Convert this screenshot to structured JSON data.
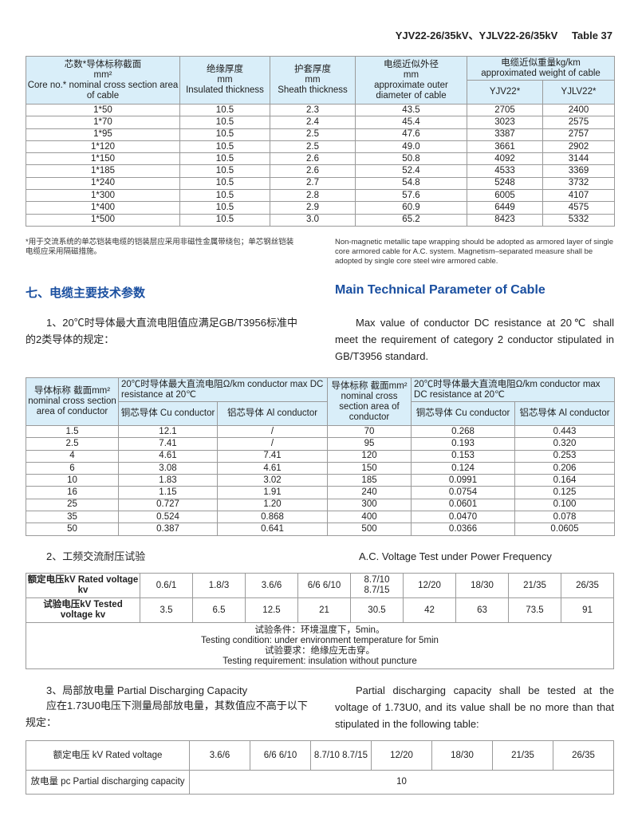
{
  "header": {
    "title": "YJV22-26/35kV、YJLV22-26/35kV",
    "table_label": "Table 37"
  },
  "table1": {
    "headers": {
      "core": [
        "芯数*导体标称截面",
        "mm²",
        "Core no.* nominal cross section area of cable"
      ],
      "insul": [
        "绝缘厚度",
        "mm",
        "Insulated thickness"
      ],
      "sheath": [
        "护套厚度",
        "mm",
        "Sheath thickness"
      ],
      "diam": [
        "电缆近似外径",
        "mm",
        "approximate outer diameter of cable"
      ],
      "weight": [
        "电缆近似重量kg/km",
        "approximated weight of cable"
      ],
      "yjv": "YJV22*",
      "yjlv": "YJLV22*"
    },
    "rows": [
      [
        "1*50",
        "10.5",
        "2.3",
        "43.5",
        "2705",
        "2400"
      ],
      [
        "1*70",
        "10.5",
        "2.4",
        "45.4",
        "3023",
        "2575"
      ],
      [
        "1*95",
        "10.5",
        "2.5",
        "47.6",
        "3387",
        "2757"
      ],
      [
        "1*120",
        "10.5",
        "2.5",
        "49.0",
        "3661",
        "2902"
      ],
      [
        "1*150",
        "10.5",
        "2.6",
        "50.8",
        "4092",
        "3144"
      ],
      [
        "1*185",
        "10.5",
        "2.6",
        "52.4",
        "4533",
        "3369"
      ],
      [
        "1*240",
        "10.5",
        "2.7",
        "54.8",
        "5248",
        "3732"
      ],
      [
        "1*300",
        "10.5",
        "2.8",
        "57.6",
        "6005",
        "4107"
      ],
      [
        "1*400",
        "10.5",
        "2.9",
        "60.9",
        "6449",
        "4575"
      ],
      [
        "1*500",
        "10.5",
        "3.0",
        "65.2",
        "8423",
        "5332"
      ]
    ]
  },
  "note": {
    "cn": "*用于交流系统的单芯铠装电缆的铠装层应采用非磁性金属带绕包；单芯钢丝铠装电缆应采用隔磁措施。",
    "en": "Non-magnetic metallic tape wrapping should be adopted as armored layer of single core armored cable for A.C. system. Magnetism–separated measure shall be adopted by single core steel wire armored cable."
  },
  "section": {
    "cn": "七、电缆主要技术参数",
    "en": "Main Technical Parameter of Cable",
    "color": "#1a4fa0"
  },
  "item1": {
    "cn": "1、20℃时导体最大直流电阻值应满足GB/T3956标准中的2类导体的规定：",
    "en": "Max value of conductor DC resistance at 20℃ shall meet the requirement of category 2 conductor stipulated in GB/T3956 standard."
  },
  "table2": {
    "headers": {
      "area_l": "导体标称 截面mm² nominal cross section area of conductor",
      "res": "20℃时导体最大直流电阻Ω/km conductor max DC resistance at 20℃",
      "area_r": "导体标称 截面mm² nominal cross section area of conductor",
      "cu": "铜芯导体 Cu conductor",
      "al": "铝芯导体 Al conductor"
    },
    "rows": [
      [
        "1.5",
        "12.1",
        "/",
        "70",
        "0.268",
        "0.443"
      ],
      [
        "2.5",
        "7.41",
        "/",
        "95",
        "0.193",
        "0.320"
      ],
      [
        "4",
        "4.61",
        "7.41",
        "120",
        "0.153",
        "0.253"
      ],
      [
        "6",
        "3.08",
        "4.61",
        "150",
        "0.124",
        "0.206"
      ],
      [
        "10",
        "1.83",
        "3.02",
        "185",
        "0.0991",
        "0.164"
      ],
      [
        "16",
        "1.15",
        "1.91",
        "240",
        "0.0754",
        "0.125"
      ],
      [
        "25",
        "0.727",
        "1.20",
        "300",
        "0.0601",
        "0.100"
      ],
      [
        "35",
        "0.524",
        "0.868",
        "400",
        "0.0470",
        "0.078"
      ],
      [
        "50",
        "0.387",
        "0.641",
        "500",
        "0.0366",
        "0.0605"
      ]
    ]
  },
  "item2": {
    "cn": "2、工频交流耐压试验",
    "en": "A.C. Voltage Test under Power Frequency"
  },
  "table3": {
    "rated_label": "额定电压kV Rated voltage kv",
    "tested_label": "试验电压kV Tested voltage kv",
    "rated": [
      "0.6/1",
      "1.8/3",
      "3.6/6",
      "6/6 6/10",
      "8.7/10 8.7/15",
      "12/20",
      "18/30",
      "21/35",
      "26/35"
    ],
    "tested": [
      "3.5",
      "6.5",
      "12.5",
      "21",
      "30.5",
      "42",
      "63",
      "73.5",
      "91"
    ],
    "conditions": [
      "试验条件：环境温度下，5min。",
      "Testing condition: under environment temperature for 5min",
      "试验要求：绝缘应无击穿。",
      "Testing requirement: insulation without puncture"
    ]
  },
  "item3": {
    "title": "3、局部放电量 Partial Discharging Capacity",
    "cn": "应在1.73U0电压下测量局部放电量，其数值应不高于以下规定：",
    "en": "Partial discharging capacity shall be tested at the voltage of 1.73U0, and its value shall be no more than that stipulated in the following table:"
  },
  "table4": {
    "rated_label": "额定电压 kV Rated voltage",
    "cap_label": "放电量  pc Partial discharging capacity",
    "rated": [
      "3.6/6",
      "6/6 6/10",
      "8.7/10 8.7/15",
      "12/20",
      "18/30",
      "21/35",
      "26/35"
    ],
    "value": "10"
  }
}
